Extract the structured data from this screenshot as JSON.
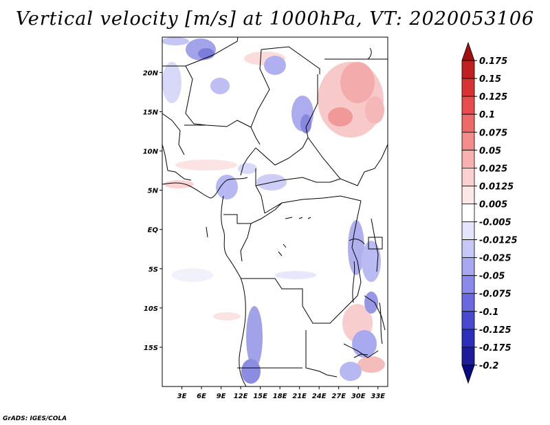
{
  "title": "Vertical velocity [m/s] at 1000hPa, VT: 2020053106",
  "credit": "GrADS: IGES/COLA",
  "map": {
    "lat_labels": [
      "20N",
      "15N",
      "10N",
      "5N",
      "EQ",
      "5S",
      "10S",
      "15S"
    ],
    "lat_values": [
      20,
      15,
      10,
      5,
      0,
      -5,
      -10,
      -15
    ],
    "lon_labels": [
      "3E",
      "6E",
      "9E",
      "12E",
      "15E",
      "18E",
      "21E",
      "24E",
      "27E",
      "30E",
      "33E"
    ],
    "lon_values": [
      3,
      6,
      9,
      12,
      15,
      18,
      21,
      24,
      27,
      30,
      33
    ],
    "lat_range": [
      -20,
      24.5
    ],
    "lon_range": [
      0,
      34.5
    ]
  },
  "colorbar": {
    "labels": [
      "0.175",
      "0.15",
      "0.125",
      "0.1",
      "0.075",
      "0.05",
      "0.025",
      "0.0125",
      "0.005",
      "-0.005",
      "-0.0125",
      "-0.025",
      "-0.05",
      "-0.075",
      "-0.1",
      "-0.125",
      "-0.175",
      "-0.2"
    ],
    "colors": [
      "#a01010",
      "#c02020",
      "#d83232",
      "#e84c4c",
      "#ee6a6a",
      "#f48c8c",
      "#f8b0b0",
      "#fbd0d0",
      "#fde8e8",
      "#ffffff",
      "#e4e4fc",
      "#c8c8f8",
      "#a8a8f2",
      "#8a8aec",
      "#6a6ae0",
      "#4a4ad0",
      "#2e2ebc",
      "#1c1c9c",
      "#0a0a80"
    ]
  }
}
